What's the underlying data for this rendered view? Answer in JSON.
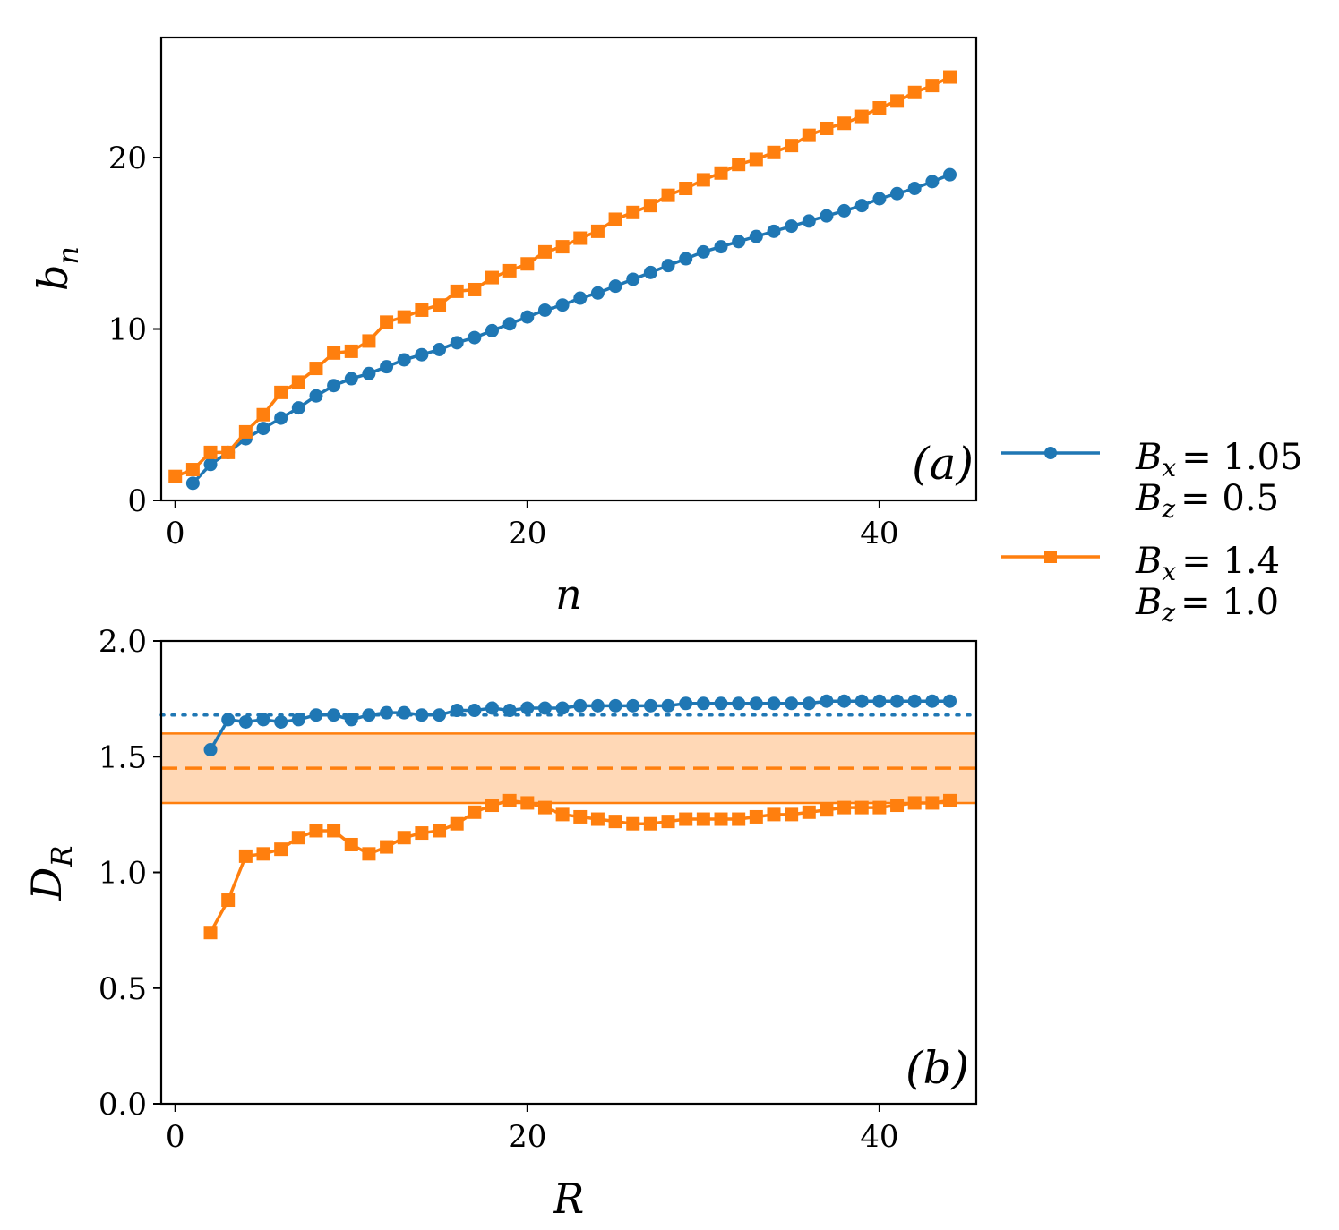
{
  "chart_data": [
    {
      "panel": "a",
      "type": "line",
      "panel_label": "(a)",
      "xlabel": "n",
      "ylabel": "b",
      "ylabel_sub": "n",
      "xlim": [
        -0.8,
        45.5
      ],
      "ylim": [
        0,
        27
      ],
      "xticks": [
        0,
        20,
        40
      ],
      "yticks": [
        0,
        10,
        20
      ],
      "tick_labels_x": [
        "0",
        "20",
        "40"
      ],
      "tick_labels_y": [
        "0",
        "10",
        "20"
      ],
      "series": [
        {
          "name": "Bx=1.05, Bz=0.5",
          "color": "#1f77b4",
          "marker": "circle",
          "x": [
            1,
            2,
            3,
            4,
            5,
            6,
            7,
            8,
            9,
            10,
            11,
            12,
            13,
            14,
            15,
            16,
            17,
            18,
            19,
            20,
            21,
            22,
            23,
            24,
            25,
            26,
            27,
            28,
            29,
            30,
            31,
            32,
            33,
            34,
            35,
            36,
            37,
            38,
            39,
            40,
            41,
            42,
            43,
            44
          ],
          "values": [
            1.0,
            2.1,
            2.8,
            3.6,
            4.2,
            4.8,
            5.4,
            6.1,
            6.7,
            7.1,
            7.4,
            7.8,
            8.2,
            8.5,
            8.8,
            9.2,
            9.5,
            9.9,
            10.3,
            10.7,
            11.1,
            11.4,
            11.8,
            12.1,
            12.5,
            12.9,
            13.3,
            13.7,
            14.1,
            14.5,
            14.8,
            15.1,
            15.4,
            15.7,
            16.0,
            16.3,
            16.6,
            16.9,
            17.2,
            17.6,
            17.9,
            18.2,
            18.6,
            19.0
          ]
        },
        {
          "name": "Bx=1.4, Bz=1.0",
          "color": "#ff7f0e",
          "marker": "square",
          "x": [
            0,
            1,
            2,
            3,
            4,
            5,
            6,
            7,
            8,
            9,
            10,
            11,
            12,
            13,
            14,
            15,
            16,
            17,
            18,
            19,
            20,
            21,
            22,
            23,
            24,
            25,
            26,
            27,
            28,
            29,
            30,
            31,
            32,
            33,
            34,
            35,
            36,
            37,
            38,
            39,
            40,
            41,
            42,
            43,
            44
          ],
          "values": [
            1.4,
            1.8,
            2.8,
            2.8,
            4.0,
            5.0,
            6.3,
            6.9,
            7.7,
            8.6,
            8.7,
            9.3,
            10.4,
            10.7,
            11.1,
            11.4,
            12.2,
            12.3,
            13.0,
            13.4,
            13.8,
            14.5,
            14.8,
            15.3,
            15.7,
            16.4,
            16.8,
            17.2,
            17.8,
            18.2,
            18.7,
            19.1,
            19.6,
            19.9,
            20.3,
            20.7,
            21.3,
            21.7,
            22.0,
            22.4,
            22.9,
            23.3,
            23.8,
            24.2,
            24.7
          ]
        }
      ]
    },
    {
      "panel": "b",
      "type": "line",
      "panel_label": "(b)",
      "xlabel": "R",
      "ylabel": "D",
      "ylabel_sub": "R",
      "xlim": [
        -0.8,
        45.5
      ],
      "ylim": [
        0,
        2.0
      ],
      "xticks": [
        0,
        20,
        40
      ],
      "yticks": [
        0.0,
        0.5,
        1.0,
        1.5,
        2.0
      ],
      "tick_labels_x": [
        "0",
        "20",
        "40"
      ],
      "tick_labels_y": [
        "0.0",
        "0.5",
        "1.0",
        "1.5",
        "2.0"
      ],
      "reference_lines": [
        {
          "value": 1.68,
          "style": "dotted",
          "color": "#1f77b4"
        },
        {
          "value": 1.45,
          "style": "dashed",
          "color": "#ff7f0e"
        }
      ],
      "band": {
        "low": 1.3,
        "high": 1.6,
        "color": "#ff7f0e"
      },
      "series": [
        {
          "name": "Bx=1.05, Bz=0.5",
          "color": "#1f77b4",
          "marker": "circle",
          "x": [
            2,
            3,
            4,
            5,
            6,
            7,
            8,
            9,
            10,
            11,
            12,
            13,
            14,
            15,
            16,
            17,
            18,
            19,
            20,
            21,
            22,
            23,
            24,
            25,
            26,
            27,
            28,
            29,
            30,
            31,
            32,
            33,
            34,
            35,
            36,
            37,
            38,
            39,
            40,
            41,
            42,
            43,
            44
          ],
          "values": [
            1.53,
            1.66,
            1.65,
            1.66,
            1.65,
            1.66,
            1.68,
            1.68,
            1.66,
            1.68,
            1.69,
            1.69,
            1.68,
            1.68,
            1.7,
            1.7,
            1.71,
            1.7,
            1.71,
            1.71,
            1.71,
            1.72,
            1.72,
            1.72,
            1.72,
            1.72,
            1.72,
            1.73,
            1.73,
            1.73,
            1.73,
            1.73,
            1.73,
            1.73,
            1.73,
            1.74,
            1.74,
            1.74,
            1.74,
            1.74,
            1.74,
            1.74,
            1.74
          ]
        },
        {
          "name": "Bx=1.4, Bz=1.0",
          "color": "#ff7f0e",
          "marker": "square",
          "x": [
            2,
            3,
            4,
            5,
            6,
            7,
            8,
            9,
            10,
            11,
            12,
            13,
            14,
            15,
            16,
            17,
            18,
            19,
            20,
            21,
            22,
            23,
            24,
            25,
            26,
            27,
            28,
            29,
            30,
            31,
            32,
            33,
            34,
            35,
            36,
            37,
            38,
            39,
            40,
            41,
            42,
            43,
            44
          ],
          "values": [
            0.74,
            0.88,
            1.07,
            1.08,
            1.1,
            1.15,
            1.18,
            1.18,
            1.12,
            1.08,
            1.11,
            1.15,
            1.17,
            1.18,
            1.21,
            1.26,
            1.29,
            1.31,
            1.3,
            1.28,
            1.25,
            1.24,
            1.23,
            1.22,
            1.21,
            1.21,
            1.22,
            1.23,
            1.23,
            1.23,
            1.23,
            1.24,
            1.25,
            1.25,
            1.26,
            1.27,
            1.28,
            1.28,
            1.28,
            1.29,
            1.3,
            1.3,
            1.31
          ]
        }
      ]
    }
  ],
  "legend": {
    "placement": "right",
    "entries": [
      {
        "line1": "B_x = 1.05",
        "line2": "B_z = 0.5",
        "color": "#1f77b4",
        "marker": "circle",
        "sym1": "B",
        "sub1": "x",
        "val1": "= 1.05",
        "sym2": "B",
        "sub2": "z",
        "val2": "= 0.5"
      },
      {
        "line1": "B_x = 1.4",
        "line2": "B_z = 1.0",
        "color": "#ff7f0e",
        "marker": "square",
        "sym1": "B",
        "sub1": "x",
        "val1": "= 1.4",
        "sym2": "B",
        "sub2": "z",
        "val2": "= 1.0"
      }
    ]
  }
}
